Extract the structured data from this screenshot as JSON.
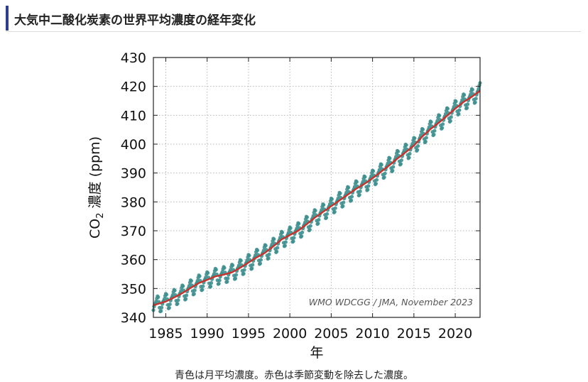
{
  "page": {
    "section_title": "大気中二酸化炭素の世界平均濃度の経年変化",
    "caption": "青色は月平均濃度。赤色は季節変動を除去した濃度。"
  },
  "colors": {
    "monthly": "#3e8f8f",
    "deseasonalized": "#c8322c",
    "accent": "#2f3d8a"
  },
  "chart_data": {
    "type": "line",
    "xlabel": "年",
    "ylabel": "CO₂ 濃度 (ppm)",
    "ylabel_parts": {
      "pre": "CO",
      "sub": "2",
      "post": " 濃度 (ppm)"
    },
    "xlim": [
      1983.5,
      2023.0
    ],
    "ylim": [
      340,
      430
    ],
    "xticks": [
      1985,
      1990,
      1995,
      2000,
      2005,
      2010,
      2015,
      2020
    ],
    "yticks": [
      340,
      350,
      360,
      370,
      380,
      390,
      400,
      410,
      420,
      430
    ],
    "grid": true,
    "credit": "WMO WDCGG / JMA, November 2023",
    "seasonal_amplitude_ppm": 2.4,
    "series": [
      {
        "key": "monthly",
        "style": "dotted markers",
        "x": [
          1983.5,
          1985,
          1986,
          1987,
          1988,
          1989,
          1990,
          1991,
          1992,
          1993,
          1994,
          1995,
          1996,
          1997,
          1998,
          1999,
          2000,
          2001,
          2002,
          2003,
          2004,
          2005,
          2006,
          2007,
          2008,
          2009,
          2010,
          2011,
          2012,
          2013,
          2014,
          2015,
          2016,
          2017,
          2018,
          2019,
          2020,
          2021,
          2022,
          2023
        ],
        "y": [
          344.2,
          345.5,
          346.9,
          348.4,
          350.2,
          351.9,
          353.0,
          354.2,
          354.8,
          355.6,
          357.2,
          359.0,
          360.8,
          362.4,
          364.6,
          367.0,
          368.5,
          370.0,
          372.2,
          374.5,
          376.5,
          378.5,
          380.5,
          382.5,
          384.5,
          386.2,
          388.2,
          390.4,
          392.6,
          395.0,
          397.2,
          399.5,
          402.6,
          405.2,
          407.4,
          409.8,
          412.3,
          414.6,
          416.4,
          418.5
        ]
      },
      {
        "key": "deseasonalized",
        "style": "solid line",
        "x": [
          1983.5,
          1985,
          1986,
          1987,
          1988,
          1989,
          1990,
          1991,
          1992,
          1993,
          1994,
          1995,
          1996,
          1997,
          1998,
          1999,
          2000,
          2001,
          2002,
          2003,
          2004,
          2005,
          2006,
          2007,
          2008,
          2009,
          2010,
          2011,
          2012,
          2013,
          2014,
          2015,
          2016,
          2017,
          2018,
          2019,
          2020,
          2021,
          2022,
          2023
        ],
        "y": [
          344.2,
          345.5,
          346.9,
          348.4,
          350.2,
          351.9,
          353.0,
          354.2,
          354.8,
          355.6,
          357.2,
          359.0,
          360.8,
          362.4,
          364.6,
          367.0,
          368.5,
          370.0,
          372.2,
          374.5,
          376.5,
          378.5,
          380.5,
          382.5,
          384.5,
          386.2,
          388.2,
          390.4,
          392.6,
          395.0,
          397.2,
          399.5,
          402.6,
          405.2,
          407.4,
          409.8,
          412.3,
          414.6,
          416.4,
          418.5
        ]
      }
    ]
  }
}
